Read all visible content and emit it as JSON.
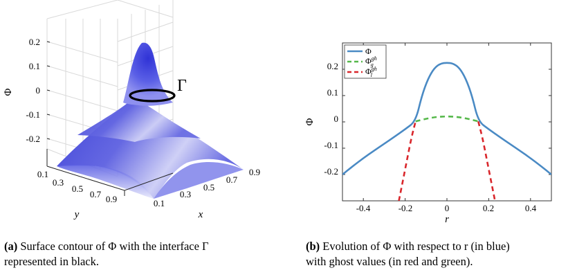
{
  "captions": {
    "a_tag": "(a)",
    "a_text": "Surface contour of Φ with the interface Γ",
    "a_text2": "represented in black.",
    "b_tag": "(b)",
    "b_text": "Evolution of Φ with respect to r (in blue)",
    "b_text2": "with ghost values (in red and green)."
  },
  "chart_data": [
    {
      "type": "surface",
      "zlabel": "Φ",
      "xlabel": "x",
      "ylabel": "y",
      "z_ticks": [
        "0.2",
        "0.1",
        "0",
        "-0.1",
        "-0.2"
      ],
      "x_ticks": [
        "0.1",
        "0.3",
        "0.5",
        "0.7",
        "0.9"
      ],
      "y_ticks": [
        "0.1",
        "0.3",
        "0.5",
        "0.7",
        "0.9"
      ],
      "annotation": "Γ",
      "zlim": [
        -0.3,
        0.25
      ],
      "peak_value": 0.225,
      "interface_value": 0.0,
      "surface_color": "#4b4fe0",
      "interface_color": "#000000"
    },
    {
      "type": "line",
      "xlabel": "r",
      "ylabel": "Φ",
      "xlim": [
        -0.5,
        0.5
      ],
      "ylim": [
        -0.3,
        0.3
      ],
      "x_ticks": [
        "-0.4",
        "-0.2",
        "0",
        "0.2",
        "0.4"
      ],
      "y_ticks": [
        "0.2",
        "0.1",
        "0",
        "-0.1",
        "-0.2"
      ],
      "legend_position": "top-left",
      "series": [
        {
          "name": "Φ",
          "label_sup": "",
          "label_sub": "",
          "color": "#4a8ac4",
          "style": "solid",
          "x": [
            -0.5,
            -0.45,
            -0.4,
            -0.35,
            -0.3,
            -0.25,
            -0.2,
            -0.15,
            -0.12,
            -0.09,
            -0.06,
            -0.03,
            0,
            0.03,
            0.06,
            0.09,
            0.12,
            0.15,
            0.2,
            0.25,
            0.3,
            0.35,
            0.4,
            0.45,
            0.5
          ],
          "y": [
            -0.2,
            -0.168,
            -0.138,
            -0.11,
            -0.083,
            -0.056,
            -0.028,
            0.002,
            0.1,
            0.165,
            0.205,
            0.222,
            0.225,
            0.222,
            0.205,
            0.165,
            0.1,
            0.002,
            -0.028,
            -0.056,
            -0.083,
            -0.11,
            -0.138,
            -0.168,
            -0.2
          ]
        },
        {
          "name": "Φ",
          "label_sup": "gh",
          "label_sub": "g",
          "color": "#55b84a",
          "style": "dashed",
          "x": [
            -0.15,
            -0.1,
            -0.05,
            0,
            0.05,
            0.1,
            0.15
          ],
          "y": [
            0.002,
            0.012,
            0.019,
            0.021,
            0.019,
            0.012,
            0.002
          ]
        },
        {
          "name": "Φ",
          "label_sup": "gh",
          "label_sub": "l",
          "color": "#d9262b",
          "style": "dashed",
          "x": [
            -0.23,
            -0.21,
            -0.19,
            -0.17,
            -0.15
          ],
          "y": [
            -0.3,
            -0.22,
            -0.14,
            -0.06,
            0.002
          ]
        },
        {
          "name": "",
          "label_sup": "",
          "label_sub": "",
          "color": "#d9262b",
          "style": "dashed",
          "x": [
            0.15,
            0.17,
            0.19,
            0.21,
            0.23
          ],
          "y": [
            0.002,
            -0.06,
            -0.14,
            -0.22,
            -0.3
          ]
        }
      ]
    }
  ]
}
